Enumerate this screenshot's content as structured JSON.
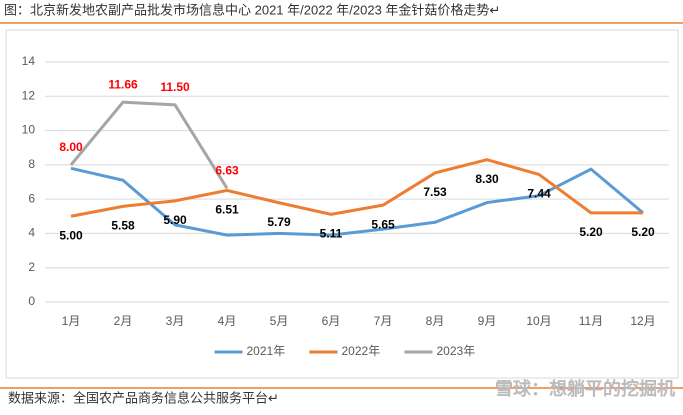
{
  "chart_data": {
    "type": "line",
    "title": "图：北京新发地农副产品批发市场信息中心 2021 年/2022 年/2023 年金针菇价格走势↵",
    "source": "数据来源：全国农产品商务信息公共服务平台↵",
    "watermark": "雪球：想躺平的挖掘机",
    "categories": [
      "1月",
      "2月",
      "3月",
      "4月",
      "5月",
      "6月",
      "7月",
      "8月",
      "9月",
      "10月",
      "11月",
      "12月"
    ],
    "series": [
      {
        "name": "2021年",
        "color": "#5b9bd5",
        "values": [
          7.8,
          7.1,
          4.5,
          3.9,
          4.0,
          3.9,
          4.25,
          4.65,
          5.8,
          6.2,
          7.75,
          5.2
        ]
      },
      {
        "name": "2022年",
        "color": "#ed7d31",
        "label_color": "#000000",
        "values": [
          5.0,
          5.58,
          5.9,
          6.51,
          5.79,
          5.11,
          5.65,
          7.53,
          8.3,
          7.44,
          5.2,
          5.2
        ],
        "value_labels": [
          "5.00",
          "5.58",
          "5.90",
          "6.51",
          "5.79",
          "5.11",
          "5.65",
          "7.53",
          "8.30",
          "7.44",
          "5.20",
          "5.20"
        ]
      },
      {
        "name": "2023年",
        "color": "#a5a5a5",
        "label_color": "#ff0000",
        "values": [
          8.0,
          11.66,
          11.5,
          6.63,
          null,
          null,
          null,
          null,
          null,
          null,
          null,
          null
        ],
        "value_labels": [
          "8.00",
          "11.66",
          "11.50",
          "6.63",
          null,
          null,
          null,
          null,
          null,
          null,
          null,
          null
        ]
      }
    ],
    "ylim": [
      0,
      14
    ],
    "yticks": [
      0,
      2,
      4,
      6,
      8,
      10,
      12,
      14
    ],
    "grid": true,
    "legend": "bottom"
  }
}
